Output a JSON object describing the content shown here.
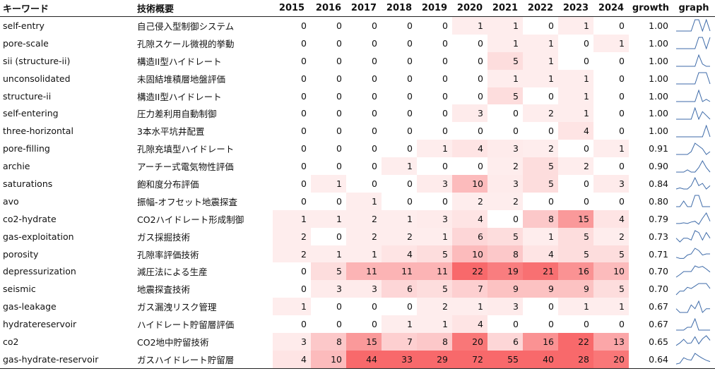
{
  "table": {
    "columns": {
      "keyword": "キーワード",
      "summary": "技術概要",
      "years": [
        "2015",
        "2016",
        "2017",
        "2018",
        "2019",
        "2020",
        "2021",
        "2022",
        "2023",
        "2024"
      ],
      "growth": "growth",
      "graph": "graph"
    },
    "heat_max": 22,
    "heat_color_hi": "#f8696b",
    "heat_color_lo": "#ffffff",
    "sparkline_color": "#3d6aa8",
    "rows": [
      {
        "keyword": "self-entry",
        "summary": "自己侵入型制御システム",
        "values": [
          0,
          0,
          0,
          0,
          0,
          1,
          1,
          0,
          1,
          0
        ],
        "growth": "1.00"
      },
      {
        "keyword": "pore-scale",
        "summary": "孔隙スケール微視的挙動",
        "values": [
          0,
          0,
          0,
          0,
          0,
          0,
          1,
          1,
          0,
          1
        ],
        "growth": "1.00"
      },
      {
        "keyword": "sii (structure-ii)",
        "summary": "構造II型ハイドレート",
        "values": [
          0,
          0,
          0,
          0,
          0,
          0,
          5,
          1,
          0,
          0
        ],
        "growth": "1.00"
      },
      {
        "keyword": "unconsolidated",
        "summary": "未固結堆積層地盤評価",
        "values": [
          0,
          0,
          0,
          0,
          0,
          0,
          1,
          1,
          1,
          0
        ],
        "growth": "1.00"
      },
      {
        "keyword": "structure-ii",
        "summary": "構造II型ハイドレート",
        "values": [
          0,
          0,
          0,
          0,
          0,
          0,
          5,
          0,
          1,
          0
        ],
        "growth": "1.00"
      },
      {
        "keyword": "self-entering",
        "summary": "圧力差利用自動制御",
        "values": [
          0,
          0,
          0,
          0,
          0,
          3,
          0,
          2,
          1,
          0
        ],
        "growth": "1.00"
      },
      {
        "keyword": "three-horizontal",
        "summary": "3本水平坑井配置",
        "values": [
          0,
          0,
          0,
          0,
          0,
          0,
          0,
          0,
          4,
          0
        ],
        "growth": "1.00"
      },
      {
        "keyword": "pore-filling",
        "summary": "孔隙充填型ハイドレート",
        "values": [
          0,
          0,
          0,
          0,
          1,
          4,
          3,
          2,
          0,
          1
        ],
        "growth": "0.91"
      },
      {
        "keyword": "archie",
        "summary": "アーチー式電気物性評価",
        "values": [
          0,
          0,
          0,
          1,
          0,
          0,
          2,
          5,
          2,
          0
        ],
        "growth": "0.90"
      },
      {
        "keyword": "saturations",
        "summary": "飽和度分布評価",
        "values": [
          0,
          1,
          0,
          0,
          3,
          10,
          3,
          5,
          0,
          3
        ],
        "growth": "0.84"
      },
      {
        "keyword": "avo",
        "summary": "振幅-オフセット地震探査",
        "values": [
          0,
          0,
          1,
          0,
          0,
          2,
          2,
          0,
          0,
          0
        ],
        "growth": "0.80"
      },
      {
        "keyword": "co2-hydrate",
        "summary": "CO2ハイドレート形成制御",
        "values": [
          1,
          1,
          2,
          1,
          3,
          4,
          0,
          8,
          15,
          4
        ],
        "growth": "0.79"
      },
      {
        "keyword": "gas-exploitation",
        "summary": "ガス採掘技術",
        "values": [
          2,
          0,
          2,
          2,
          1,
          6,
          5,
          1,
          5,
          2
        ],
        "growth": "0.73"
      },
      {
        "keyword": "porosity",
        "summary": "孔隙率評価技術",
        "values": [
          2,
          1,
          1,
          4,
          5,
          10,
          8,
          4,
          5,
          5
        ],
        "growth": "0.71"
      },
      {
        "keyword": "depressurization",
        "summary": "減圧法による生産",
        "values": [
          0,
          5,
          11,
          11,
          11,
          22,
          19,
          21,
          16,
          10
        ],
        "growth": "0.70"
      },
      {
        "keyword": "seismic",
        "summary": "地震探査技術",
        "values": [
          0,
          3,
          3,
          6,
          5,
          7,
          9,
          9,
          9,
          5
        ],
        "growth": "0.70"
      },
      {
        "keyword": "gas-leakage",
        "summary": "ガス漏洩リスク管理",
        "values": [
          1,
          0,
          0,
          0,
          2,
          1,
          3,
          0,
          1,
          1
        ],
        "growth": "0.67"
      },
      {
        "keyword": "hydratereservoir",
        "summary": "ハイドレート貯留層評価",
        "values": [
          0,
          0,
          0,
          1,
          1,
          4,
          0,
          0,
          0,
          0
        ],
        "growth": "0.67"
      },
      {
        "keyword": "co2",
        "summary": "CO2地中貯留技術",
        "values": [
          3,
          8,
          15,
          7,
          8,
          20,
          6,
          16,
          22,
          13
        ],
        "growth": "0.65"
      },
      {
        "keyword": "gas-hydrate-reservoir",
        "summary": "ガスハイドレート貯留層",
        "values": [
          4,
          10,
          44,
          33,
          29,
          72,
          55,
          40,
          28,
          20
        ],
        "growth": "0.64"
      }
    ]
  }
}
